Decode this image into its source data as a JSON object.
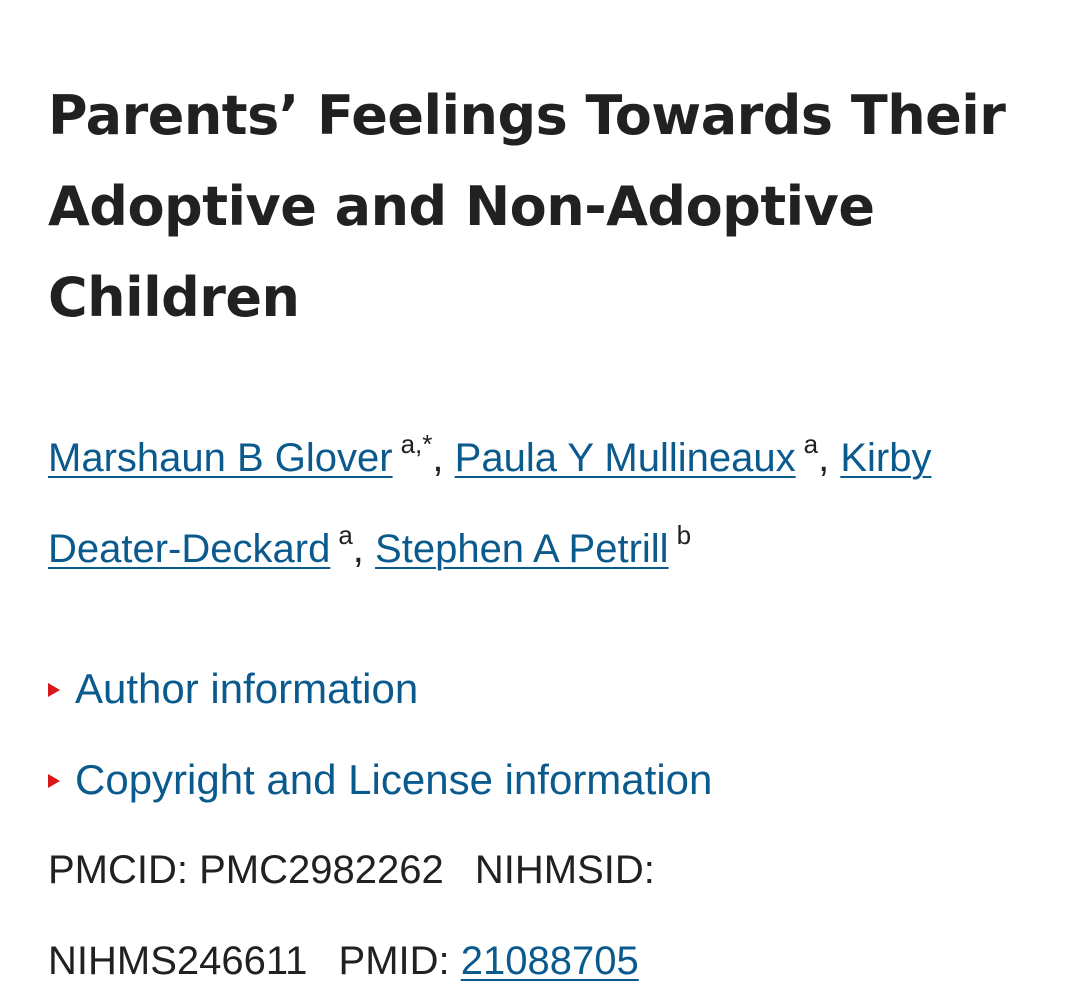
{
  "article": {
    "title": "Parents’ Feelings Towards Their Adoptive and Non-Adoptive Children"
  },
  "authors": [
    {
      "name": "Marshaun B Glover",
      "affiliation": "a,*",
      "separator": ", "
    },
    {
      "name": "Paula Y Mullineaux",
      "affiliation": "a",
      "separator": ", "
    },
    {
      "name": "Kirby Deater-Deckard",
      "affiliation": "a",
      "separator": ", "
    },
    {
      "name": "Stephen A Petrill",
      "affiliation": "b",
      "separator": ""
    }
  ],
  "sections": {
    "author_info_label": "Author information",
    "copyright_label": "Copyright and License information"
  },
  "identifiers": {
    "pmcid_label": "PMCID:",
    "pmcid_value": "PMC2982262",
    "nihmsid_label": "NIHMSID:",
    "nihmsid_value": "NIHMS246611",
    "pmid_label": "PMID:",
    "pmid_value": "21088705"
  },
  "colors": {
    "link": "#0b5a8e",
    "text": "#212121",
    "triangle": "#d8171a",
    "background": "#ffffff"
  },
  "icons": {
    "expand": "triangle-right-icon"
  }
}
